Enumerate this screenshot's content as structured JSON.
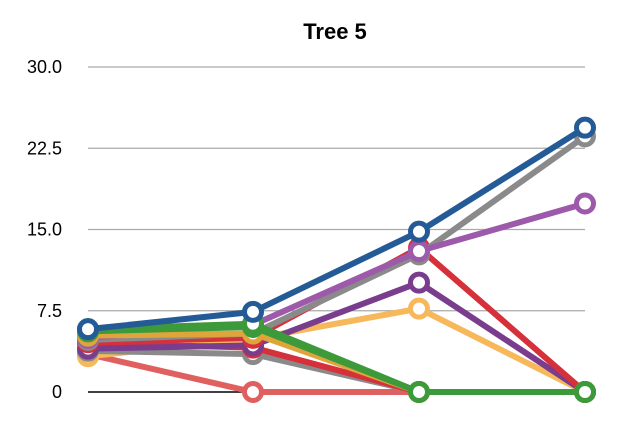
{
  "chart_data": {
    "type": "line",
    "title": "Tree 5",
    "xlabel": "",
    "ylabel": "",
    "x": [
      1,
      2,
      3,
      4
    ],
    "ylim": [
      0,
      30
    ],
    "yticks": [
      0,
      7.5,
      15,
      22.5,
      30
    ],
    "ytick_labels": [
      "0",
      "7.5",
      "15.0",
      "22.5",
      "30.0"
    ],
    "grid": true,
    "legend": "none",
    "series": [
      {
        "color": "#e06060",
        "values": [
          3.5,
          0,
          0,
          0
        ]
      },
      {
        "color": "#f6b85a",
        "values": [
          3.3,
          4.9,
          7.7,
          0
        ]
      },
      {
        "color": "#8a8a8a",
        "values": [
          3.8,
          3.5,
          0,
          0
        ]
      },
      {
        "color": "#d6303a",
        "values": [
          4.5,
          4.1,
          0,
          0
        ]
      },
      {
        "color": "#7a3d8e",
        "values": [
          4.0,
          4.3,
          10.1,
          0
        ]
      },
      {
        "color": "#d6303a",
        "values": [
          4.6,
          5.0,
          13.3,
          0
        ]
      },
      {
        "color": "#8a8a8a",
        "values": [
          4.8,
          5.4,
          12.7,
          23.6
        ]
      },
      {
        "color": "#9e5aaa",
        "values": [
          5.0,
          6.2,
          13.0,
          17.4
        ]
      },
      {
        "color": "#e0a53a",
        "values": [
          5.2,
          5.4,
          0,
          0
        ]
      },
      {
        "color": "#3d9a3a",
        "values": [
          5.6,
          6.0,
          0,
          0
        ]
      },
      {
        "color": "#3d9a3a",
        "values": [
          5.8,
          6.3,
          0,
          0
        ]
      },
      {
        "color": "#245b96",
        "values": [
          5.8,
          7.4,
          14.8,
          24.4
        ]
      }
    ]
  }
}
